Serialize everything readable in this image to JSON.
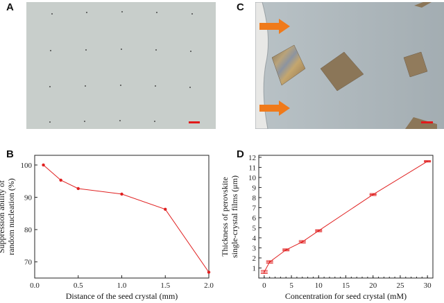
{
  "panels": {
    "a": {
      "letter": "A"
    },
    "b": {
      "letter": "B"
    },
    "c": {
      "letter": "C"
    },
    "d": {
      "letter": "D"
    }
  },
  "colors": {
    "series": "#e02020",
    "arrow": "#f07a1a",
    "scale_bar": "#e21a1a",
    "photo_a_bg": "#c9cfcb",
    "photo_c_bg": "#aab4b9",
    "crystal": "#8a7456"
  },
  "chart_data": [
    {
      "type": "line",
      "panel": "B",
      "xlabel": "Distance of the seed crystal (mm)",
      "ylabel": "Suppression ability of random nucleation (%)",
      "ylabel_lines": [
        "Suppression ability of",
        "random nucleation (%)"
      ],
      "xlim": [
        0.0,
        2.0
      ],
      "ylim": [
        65,
        103
      ],
      "xticks": [
        "0.0",
        "0.5",
        "1.0",
        "1.5",
        "2.0"
      ],
      "yticks": [
        "70",
        "80",
        "90",
        "100"
      ],
      "series": [
        {
          "x": [
            0.1,
            0.3,
            0.5,
            1.0,
            1.5,
            2.0
          ],
          "y": [
            100.0,
            95.3,
            92.7,
            91.0,
            86.3,
            66.8
          ]
        }
      ]
    },
    {
      "type": "line",
      "panel": "D",
      "xlabel": "Concentration for seed crystal (mM)",
      "ylabel": "Thickness of perovskite single-crystal films (μm)",
      "ylabel_lines": [
        "Thickness of perovskite",
        "single-crystal films (μm)"
      ],
      "xlim": [
        -1,
        31
      ],
      "ylim": [
        0,
        12.2
      ],
      "xticks": [
        "0",
        "5",
        "10",
        "15",
        "20",
        "25",
        "30"
      ],
      "yticks": [
        "1",
        "2",
        "3",
        "4",
        "5",
        "6",
        "7",
        "8",
        "9",
        "10",
        "11",
        "12"
      ],
      "series": [
        {
          "x": [
            0,
            1,
            4,
            7,
            10,
            20,
            30
          ],
          "y": [
            0.6,
            1.6,
            2.8,
            3.6,
            4.7,
            8.3,
            11.6
          ],
          "err": [
            0.15,
            0.12,
            0.1,
            0.12,
            0.1,
            0.1,
            0.07
          ]
        }
      ]
    }
  ]
}
